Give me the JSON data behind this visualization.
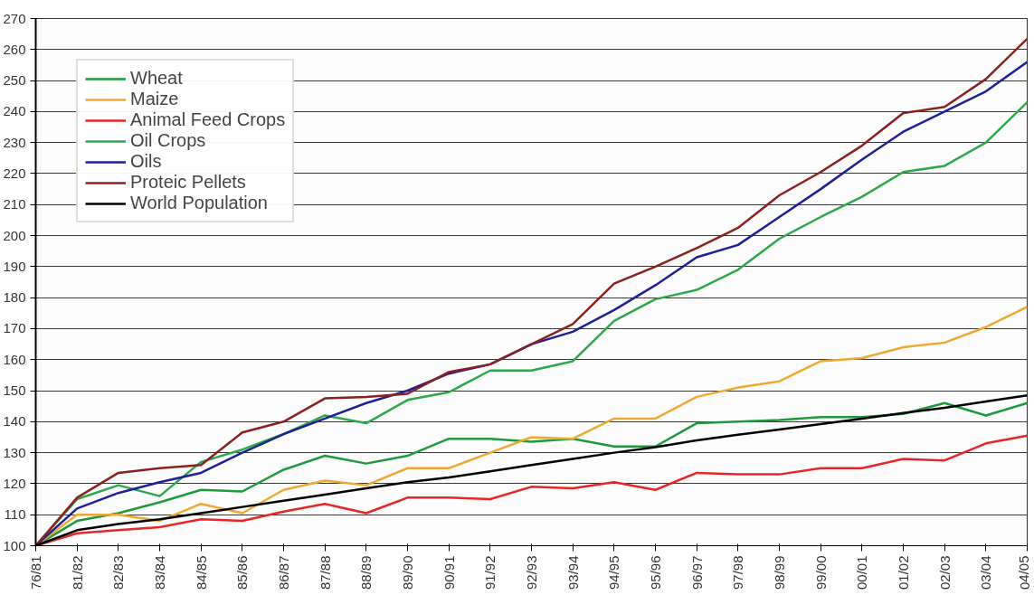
{
  "chart_data": {
    "type": "line",
    "categories": [
      "76/81",
      "81/82",
      "82/83",
      "83/84",
      "84/85",
      "85/86",
      "86/87",
      "87/88",
      "88/89",
      "89/90",
      "90/91",
      "91/92",
      "92/93",
      "93/94",
      "94/95",
      "95/96",
      "96/97",
      "97/98",
      "98/99",
      "99/00",
      "00/01",
      "01/02",
      "02/03",
      "03/04",
      "04/05"
    ],
    "series": [
      {
        "name": "Wheat",
        "color": "#1e9a3c",
        "values": [
          100,
          108,
          110.5,
          114,
          118,
          117.5,
          124.5,
          129,
          126.5,
          129,
          134.5,
          134.5,
          133.5,
          134.5,
          132,
          132,
          139.5,
          140,
          140.5,
          141.5,
          141.5,
          142.5,
          146,
          142,
          146
        ]
      },
      {
        "name": "Maize",
        "color": "#f0a830",
        "values": [
          100,
          110,
          110,
          108,
          113.5,
          110.5,
          118,
          121,
          119.5,
          125,
          125,
          130,
          135,
          134.5,
          141,
          141,
          148,
          151,
          153,
          159.5,
          160.5,
          164,
          165.5,
          170.5,
          177
        ]
      },
      {
        "name": "Animal Feed Crops",
        "color": "#e8262a",
        "values": [
          100,
          104,
          105,
          106,
          108.5,
          108,
          111,
          113.5,
          110.5,
          115.5,
          115.5,
          115,
          119,
          118.5,
          120.5,
          118,
          123.5,
          123,
          123,
          125,
          125,
          128,
          127.5,
          133,
          135.5
        ]
      },
      {
        "name": "Oil Crops",
        "color": "#2ca84a",
        "values": [
          100,
          115,
          119.5,
          116,
          127,
          131,
          136,
          142,
          139.5,
          147,
          149.5,
          156.5,
          156.5,
          159.5,
          172.5,
          179.5,
          182.5,
          189,
          199,
          206,
          212.5,
          220.5,
          222.5,
          230,
          243
        ]
      },
      {
        "name": "Oils",
        "color": "#1f1f9a",
        "values": [
          100,
          112,
          117,
          120.5,
          123.5,
          130,
          136,
          141,
          146,
          150,
          155.5,
          158.5,
          165,
          169,
          176,
          184,
          193,
          197,
          206,
          215,
          224.5,
          233.5,
          240,
          246.5,
          256
        ]
      },
      {
        "name": "Proteic Pellets",
        "color": "#8b2020",
        "values": [
          100,
          115.5,
          123.5,
          125,
          126,
          136.5,
          140,
          147.5,
          148,
          149,
          156,
          158.5,
          165,
          171.5,
          184.5,
          190,
          196,
          202.5,
          213,
          220.5,
          229,
          239.5,
          241.5,
          250.5,
          263.5
        ]
      },
      {
        "name": "World Population",
        "color": "#000000",
        "values": [
          100,
          105,
          107,
          108.5,
          110.5,
          112.5,
          114.5,
          116.5,
          118.5,
          120.5,
          122,
          124,
          126,
          128,
          130,
          131.8,
          134,
          135.8,
          137.5,
          139.2,
          141,
          142.8,
          144.5,
          146.5,
          148.5
        ]
      }
    ],
    "ylim": [
      100,
      270
    ],
    "yticks": [
      100,
      110,
      120,
      130,
      140,
      150,
      160,
      170,
      180,
      190,
      200,
      210,
      220,
      230,
      240,
      250,
      260,
      270
    ],
    "grid": "y",
    "legend": "top left",
    "line_style": "solid",
    "marker": "none"
  }
}
